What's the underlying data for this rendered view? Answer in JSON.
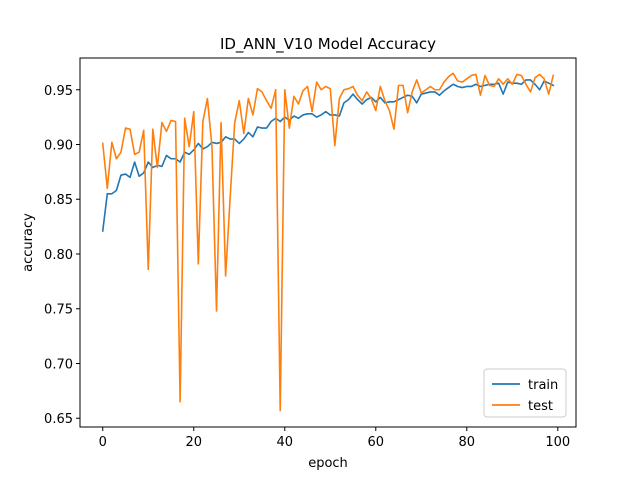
{
  "chart_data": {
    "type": "line",
    "title": "ID_ANN_V10 Model Accuracy",
    "xlabel": "epoch",
    "ylabel": "accuracy",
    "xlim": [
      -5,
      104
    ],
    "ylim": [
      0.642,
      0.979
    ],
    "xticks": [
      0,
      20,
      40,
      60,
      80,
      100
    ],
    "yticks": [
      0.65,
      0.7,
      0.75,
      0.8,
      0.85,
      0.9,
      0.95
    ],
    "ytick_labels": [
      "0.65",
      "0.70",
      "0.75",
      "0.80",
      "0.85",
      "0.90",
      "0.95"
    ],
    "grid": false,
    "legend_position": "lower-right",
    "series": [
      {
        "name": "train",
        "color": "#1f77b4",
        "values": [
          0.821,
          0.855,
          0.855,
          0.858,
          0.872,
          0.873,
          0.87,
          0.884,
          0.871,
          0.874,
          0.884,
          0.879,
          0.881,
          0.88,
          0.89,
          0.887,
          0.887,
          0.884,
          0.893,
          0.891,
          0.895,
          0.901,
          0.896,
          0.898,
          0.902,
          0.901,
          0.902,
          0.907,
          0.905,
          0.905,
          0.901,
          0.905,
          0.911,
          0.907,
          0.916,
          0.915,
          0.915,
          0.921,
          0.924,
          0.921,
          0.925,
          0.922,
          0.926,
          0.924,
          0.927,
          0.928,
          0.928,
          0.925,
          0.927,
          0.93,
          0.927,
          0.927,
          0.926,
          0.938,
          0.941,
          0.946,
          0.941,
          0.937,
          0.941,
          0.943,
          0.939,
          0.943,
          0.938,
          0.939,
          0.939,
          0.941,
          0.943,
          0.945,
          0.944,
          0.938,
          0.946,
          0.947,
          0.948,
          0.948,
          0.945,
          0.949,
          0.952,
          0.955,
          0.953,
          0.952,
          0.953,
          0.953,
          0.955,
          0.953,
          0.954,
          0.955,
          0.955,
          0.956,
          0.946,
          0.957,
          0.956,
          0.956,
          0.955,
          0.959,
          0.959,
          0.955,
          0.95,
          0.958,
          0.956,
          0.954
        ]
      },
      {
        "name": "test",
        "color": "#ff7f0e",
        "values": [
          0.901,
          0.86,
          0.902,
          0.887,
          0.893,
          0.915,
          0.914,
          0.891,
          0.893,
          0.913,
          0.786,
          0.914,
          0.879,
          0.92,
          0.912,
          0.922,
          0.921,
          0.665,
          0.924,
          0.898,
          0.93,
          0.791,
          0.921,
          0.942,
          0.898,
          0.748,
          0.92,
          0.78,
          0.852,
          0.92,
          0.94,
          0.91,
          0.942,
          0.927,
          0.951,
          0.948,
          0.94,
          0.933,
          0.95,
          0.657,
          0.95,
          0.915,
          0.944,
          0.937,
          0.949,
          0.953,
          0.93,
          0.957,
          0.95,
          0.953,
          0.951,
          0.899,
          0.942,
          0.95,
          0.951,
          0.953,
          0.945,
          0.94,
          0.948,
          0.942,
          0.931,
          0.953,
          0.94,
          0.931,
          0.914,
          0.954,
          0.954,
          0.929,
          0.948,
          0.959,
          0.947,
          0.95,
          0.953,
          0.95,
          0.95,
          0.957,
          0.962,
          0.965,
          0.958,
          0.957,
          0.96,
          0.963,
          0.964,
          0.945,
          0.963,
          0.954,
          0.953,
          0.96,
          0.955,
          0.96,
          0.955,
          0.964,
          0.963,
          0.955,
          0.948,
          0.961,
          0.964,
          0.96,
          0.946,
          0.963
        ]
      }
    ]
  }
}
